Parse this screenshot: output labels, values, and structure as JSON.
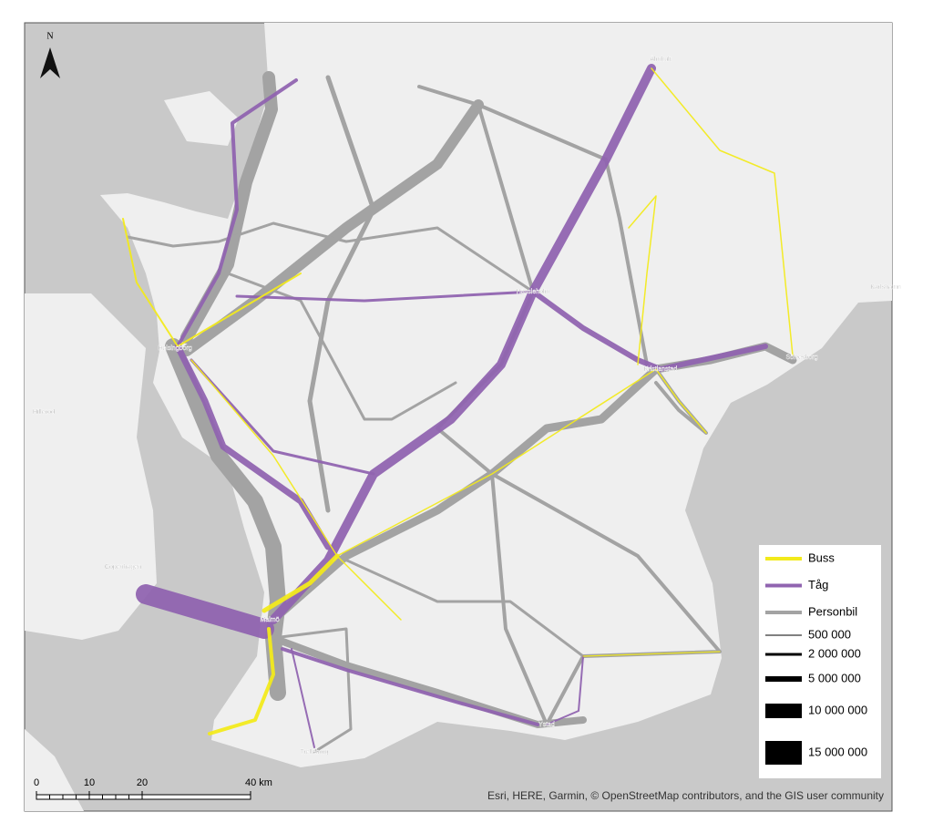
{
  "north": "N",
  "legend": {
    "modes": [
      {
        "label": "Buss",
        "color": "#f2ea1c"
      },
      {
        "label": "Tåg",
        "color": "#9064b0"
      },
      {
        "label": "Personbil",
        "color": "#a3a3a3"
      }
    ],
    "volumes": [
      "500 000",
      "2 000 000",
      "5 000 000",
      "10 000 000",
      "15 000 000"
    ]
  },
  "scale_bar": [
    "0",
    "10",
    "20",
    "40 km"
  ],
  "attribution": "Esri, HERE, Garmin, © OpenStreetMap contributors, and the GIS user community",
  "places": [
    "Älmhult",
    "Hässleholm",
    "Helsingborg",
    "Kristianstad",
    "Sölvesborg",
    "Karlshamn",
    "Hillerød",
    "Copenhagen",
    "Malmö",
    "Ystad",
    "Trelleborg"
  ]
}
